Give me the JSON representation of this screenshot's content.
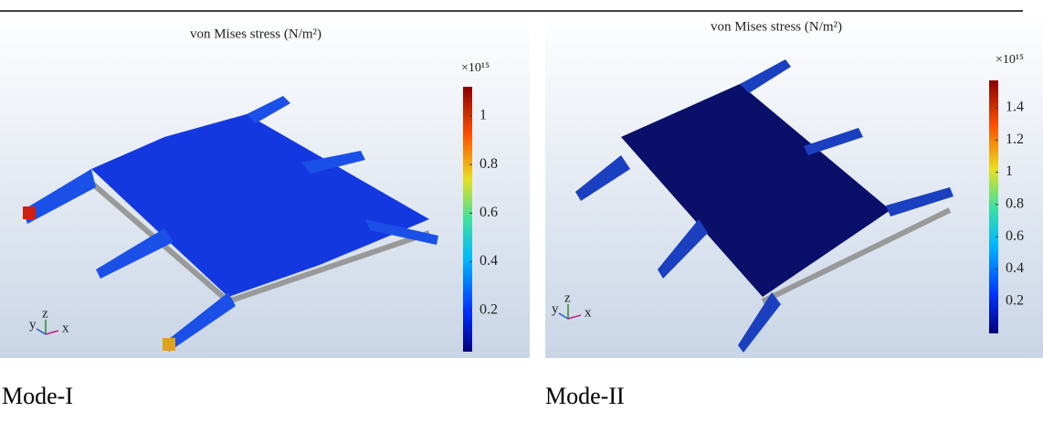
{
  "panels": [
    {
      "title": "von Mises stress (N/m²)",
      "exponent": "×10¹⁵",
      "colorbar_lim": [
        0.03,
        1.12
      ],
      "colorbar_ticks": [
        0.2,
        0.4,
        0.6,
        0.8,
        1
      ],
      "axes": [
        "y",
        "z",
        "x"
      ],
      "caption": "Mode-I"
    },
    {
      "title": "von Mises stress (N/m²)",
      "exponent": "×10¹⁵",
      "colorbar_lim": [
        0,
        1.57
      ],
      "colorbar_ticks": [
        0.2,
        0.4,
        0.6,
        0.8,
        1,
        1.2,
        1.4
      ],
      "axes": [
        "y",
        "z",
        "x"
      ],
      "caption": "Mode-II"
    }
  ]
}
